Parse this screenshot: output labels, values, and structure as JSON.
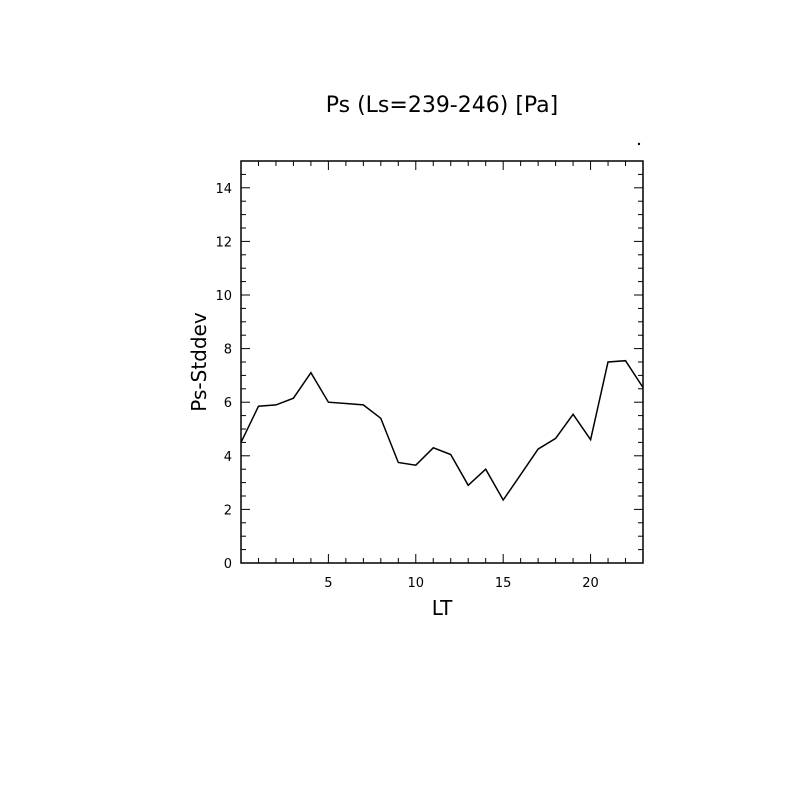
{
  "chart_data": {
    "type": "line",
    "title": "Ps (Ls=239-246) [Pa]",
    "xlabel": "LT",
    "ylabel": "Ps-Stddev",
    "xlim": [
      0,
      23
    ],
    "ylim": [
      0,
      15
    ],
    "xticks": [
      5,
      10,
      15,
      20
    ],
    "yticks": [
      0,
      2,
      4,
      6,
      8,
      10,
      12,
      14
    ],
    "grid": false,
    "series": [
      {
        "x": [
          0,
          1,
          2,
          3,
          4,
          5,
          6,
          7,
          8,
          9,
          10,
          11,
          12,
          13,
          14,
          15,
          16,
          17,
          18,
          19,
          20,
          21,
          22,
          23
        ],
        "values": [
          4.5,
          5.85,
          5.9,
          6.15,
          7.1,
          6.0,
          5.95,
          5.9,
          5.4,
          3.75,
          3.65,
          4.3,
          4.05,
          2.9,
          3.5,
          2.35,
          3.3,
          4.25,
          4.65,
          5.55,
          4.6,
          7.5,
          7.55,
          6.55
        ]
      }
    ]
  }
}
